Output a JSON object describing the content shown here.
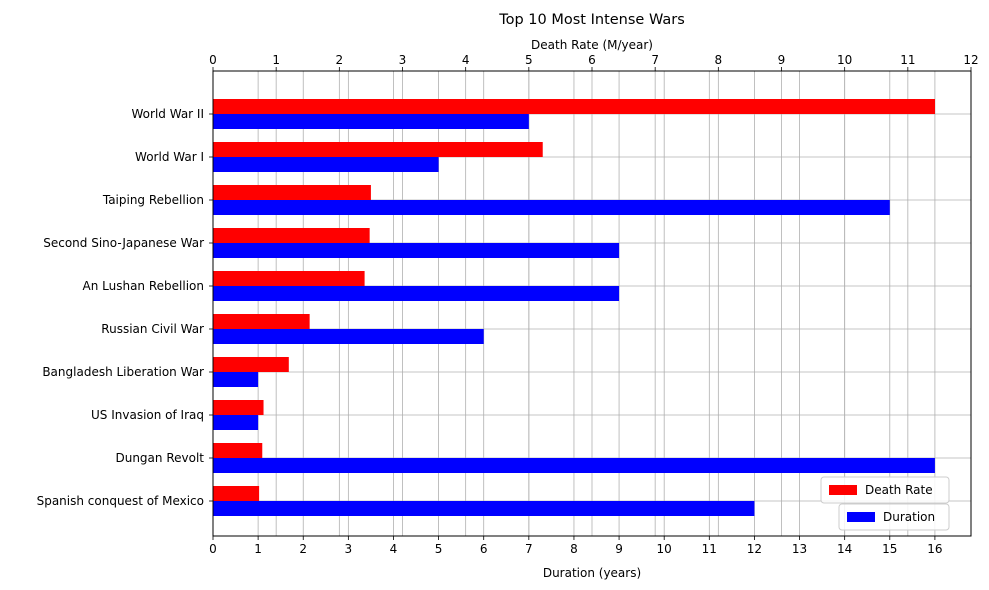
{
  "chart_data": {
    "type": "bar",
    "orientation": "horizontal",
    "title": "Top 10 Most Intense Wars",
    "categories": [
      "World War II",
      "World War I",
      "Taiping Rebellion",
      "Second Sino-Japanese War",
      "An Lushan Rebellion",
      "Russian Civil War",
      "Bangladesh Liberation War",
      "US Invasion of Iraq",
      "Dungan Revolt",
      "Spanish conquest of Mexico"
    ],
    "top_axis": {
      "label": "Death Rate (M/year)",
      "range": [
        0,
        12
      ],
      "ticks": [
        0,
        1,
        2,
        3,
        4,
        5,
        6,
        7,
        8,
        9,
        10,
        11,
        12
      ]
    },
    "bottom_axis": {
      "label": "Duration (years)",
      "range": [
        0,
        16.8
      ],
      "ticks": [
        0,
        1,
        2,
        3,
        4,
        5,
        6,
        7,
        8,
        9,
        10,
        11,
        12,
        13,
        14,
        15,
        16
      ]
    },
    "series": [
      {
        "name": "Death Rate",
        "axis": "top",
        "color": "#ff0000",
        "values": [
          11.43,
          5.22,
          2.5,
          2.48,
          2.4,
          1.53,
          1.2,
          0.8,
          0.78,
          0.73
        ]
      },
      {
        "name": "Duration",
        "axis": "bottom",
        "color": "#0000ff",
        "values": [
          7,
          5,
          15,
          9,
          9,
          6,
          1,
          1,
          16,
          12
        ]
      }
    ],
    "grid": true,
    "legend": "bottom-right"
  }
}
